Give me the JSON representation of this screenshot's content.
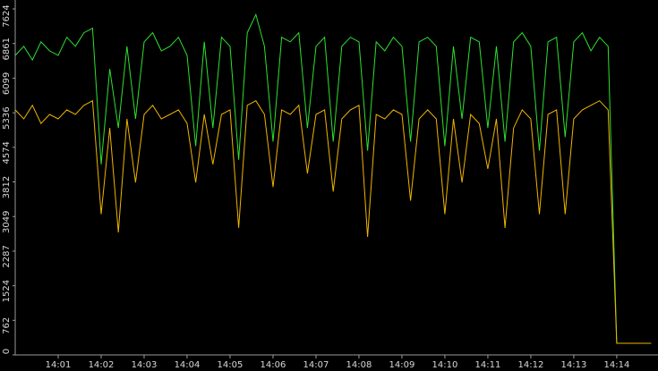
{
  "chart_data": {
    "type": "line",
    "x": [
      0,
      0.2,
      0.4,
      0.6,
      0.8,
      1,
      1.2,
      1.4,
      1.6,
      1.8,
      2,
      2.2,
      2.4,
      2.6,
      2.8,
      3,
      3.2,
      3.4,
      3.6,
      3.8,
      4,
      4.2,
      4.4,
      4.6,
      4.8,
      5,
      5.2,
      5.4,
      5.6,
      5.8,
      6,
      6.2,
      6.4,
      6.6,
      6.8,
      7,
      7.2,
      7.4,
      7.6,
      7.8,
      8,
      8.2,
      8.4,
      8.6,
      8.8,
      9,
      9.2,
      9.4,
      9.6,
      9.8,
      10,
      10.2,
      10.4,
      10.6,
      10.8,
      11,
      11.2,
      11.4,
      11.6,
      11.8,
      12,
      12.2,
      12.4,
      12.6,
      12.8,
      13,
      13.2,
      13.4,
      13.6,
      13.8,
      14,
      14.2,
      14.4,
      14.6,
      14.8
    ],
    "series": [
      {
        "color": "#2ee02e",
        "values": [
          6600,
          6800,
          6500,
          6900,
          6700,
          6600,
          7000,
          6800,
          7100,
          7200,
          4200,
          6300,
          5000,
          6800,
          5200,
          6900,
          7100,
          6700,
          6800,
          7000,
          6600,
          4600,
          6900,
          5000,
          7000,
          6800,
          4300,
          7100,
          7500,
          6800,
          4700,
          7000,
          6900,
          7100,
          5000,
          6800,
          7000,
          4700,
          6800,
          7000,
          6900,
          4500,
          6900,
          6700,
          7000,
          6800,
          4700,
          6900,
          7000,
          6800,
          4600,
          6800,
          5200,
          7000,
          6900,
          5000,
          6800,
          4700,
          6900,
          7100,
          6800,
          4500,
          6900,
          7000,
          4800,
          6900,
          7100,
          6700,
          7000,
          6800,
          257,
          257,
          257,
          257,
          257
        ]
      },
      {
        "color": "#f0b400",
        "values": [
          5400,
          5200,
          5500,
          5100,
          5300,
          5200,
          5400,
          5300,
          5500,
          5600,
          3100,
          5000,
          2700,
          5200,
          3800,
          5300,
          5500,
          5200,
          5300,
          5400,
          5100,
          3800,
          5300,
          4200,
          5300,
          5400,
          2800,
          5500,
          5600,
          5300,
          3700,
          5400,
          5300,
          5500,
          4000,
          5300,
          5400,
          3600,
          5200,
          5400,
          5500,
          2600,
          5300,
          5200,
          5400,
          5300,
          3400,
          5200,
          5400,
          5200,
          3100,
          5200,
          3800,
          5300,
          5100,
          4100,
          5200,
          2800,
          5000,
          5400,
          5200,
          3100,
          5300,
          5400,
          3100,
          5200,
          5400,
          5500,
          5600,
          5400,
          257,
          257,
          257,
          257,
          257
        ]
      }
    ],
    "xlim": [
      0,
      14.96
    ],
    "xticks": [
      {
        "value": 1,
        "label": "14:01"
      },
      {
        "value": 2,
        "label": "14:02"
      },
      {
        "value": 3,
        "label": "14:03"
      },
      {
        "value": 4,
        "label": "14:04"
      },
      {
        "value": 5,
        "label": "14:05"
      },
      {
        "value": 6,
        "label": "14:06"
      },
      {
        "value": 7,
        "label": "14:07"
      },
      {
        "value": 8,
        "label": "14:08"
      },
      {
        "value": 9,
        "label": "14:09"
      },
      {
        "value": 10,
        "label": "14:10"
      },
      {
        "value": 11,
        "label": "14:11"
      },
      {
        "value": 12,
        "label": "14:12"
      },
      {
        "value": 13,
        "label": "14:13"
      },
      {
        "value": 14,
        "label": "14:14"
      }
    ],
    "ylim": [
      0,
      7624
    ],
    "yticks": [
      0,
      762,
      1524,
      2287,
      3049,
      3812,
      4574,
      5336,
      6099,
      6861,
      7624
    ]
  }
}
